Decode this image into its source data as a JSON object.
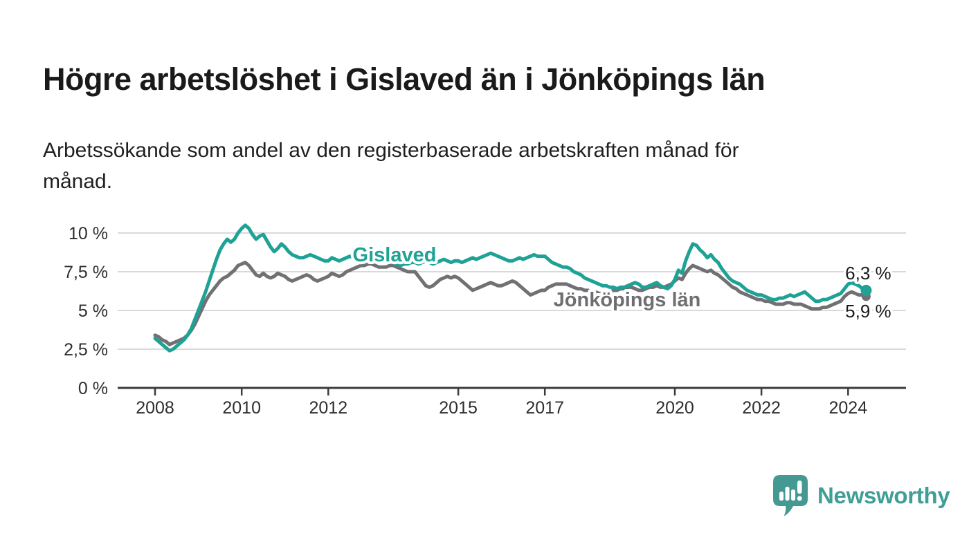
{
  "header": {
    "title": "Högre arbetslöshet i Gislaved än i Jönköpings län",
    "subtitle_line1": "Arbetssökande som andel av den registerbaserade arbetskraften månad för",
    "subtitle_line2": "månad."
  },
  "chart_data": {
    "type": "line",
    "x_start_year": 2008,
    "x_step_months": 1,
    "x_end_label_period": "2024 (mitten av året)",
    "ylim": [
      0,
      10.5
    ],
    "xlim": [
      2007.1,
      2025.3
    ],
    "grid": "horizontal",
    "grid_color": "#d9d9d9",
    "axis_color": "#3b3b3b",
    "axis_label_color": "#2e2e2e",
    "value_label_color": "#1a1a1a",
    "y_ticks": [
      {
        "value": 0,
        "label": "0 %"
      },
      {
        "value": 2.5,
        "label": "2,5 %"
      },
      {
        "value": 5,
        "label": "5 %"
      },
      {
        "value": 7.5,
        "label": "7,5 %"
      },
      {
        "value": 10,
        "label": "10 %"
      }
    ],
    "x_ticks": [
      {
        "year": 2008,
        "label": "2008"
      },
      {
        "year": 2010,
        "label": "2010"
      },
      {
        "year": 2012,
        "label": "2012"
      },
      {
        "year": 2015,
        "label": "2015"
      },
      {
        "year": 2017,
        "label": "2017"
      },
      {
        "year": 2020,
        "label": "2020"
      },
      {
        "year": 2022,
        "label": "2022"
      },
      {
        "year": 2024,
        "label": "2024"
      }
    ],
    "series": [
      {
        "name": "Gislaved",
        "color": "#1ea296",
        "label_color": "#1ea296",
        "end_label": "6,3 %",
        "end_value": 6.3,
        "values": [
          3.2,
          3.0,
          2.8,
          2.6,
          2.4,
          2.5,
          2.7,
          2.9,
          3.1,
          3.4,
          3.8,
          4.4,
          5.0,
          5.6,
          6.2,
          6.9,
          7.6,
          8.3,
          8.9,
          9.3,
          9.6,
          9.4,
          9.6,
          10.0,
          10.3,
          10.5,
          10.3,
          9.9,
          9.6,
          9.8,
          9.9,
          9.5,
          9.1,
          8.8,
          9.0,
          9.3,
          9.1,
          8.8,
          8.6,
          8.5,
          8.4,
          8.4,
          8.5,
          8.6,
          8.5,
          8.4,
          8.3,
          8.2,
          8.2,
          8.4,
          8.3,
          8.2,
          8.3,
          8.4,
          8.5,
          8.4,
          8.5,
          8.6,
          8.7,
          8.9,
          8.7,
          8.6,
          8.5,
          8.4,
          8.3,
          8.2,
          8.1,
          8.0,
          7.9,
          8.0,
          8.0,
          8.1,
          8.1,
          8.0,
          8.1,
          8.2,
          8.1,
          8.0,
          8.1,
          8.2,
          8.3,
          8.2,
          8.1,
          8.2,
          8.2,
          8.1,
          8.2,
          8.3,
          8.4,
          8.3,
          8.4,
          8.5,
          8.6,
          8.7,
          8.6,
          8.5,
          8.4,
          8.3,
          8.2,
          8.2,
          8.3,
          8.4,
          8.3,
          8.4,
          8.5,
          8.6,
          8.5,
          8.5,
          8.5,
          8.3,
          8.1,
          8.0,
          7.9,
          7.8,
          7.8,
          7.7,
          7.5,
          7.4,
          7.3,
          7.1,
          7.0,
          6.9,
          6.8,
          6.7,
          6.6,
          6.6,
          6.5,
          6.5,
          6.4,
          6.5,
          6.5,
          6.6,
          6.7,
          6.8,
          6.7,
          6.5,
          6.5,
          6.6,
          6.7,
          6.8,
          6.6,
          6.5,
          6.4,
          6.6,
          7.0,
          7.6,
          7.4,
          8.2,
          8.8,
          9.3,
          9.2,
          8.9,
          8.7,
          8.4,
          8.6,
          8.3,
          8.1,
          7.7,
          7.4,
          7.1,
          6.9,
          6.8,
          6.7,
          6.5,
          6.3,
          6.2,
          6.1,
          6.0,
          6.0,
          5.9,
          5.8,
          5.7,
          5.7,
          5.8,
          5.8,
          5.9,
          6.0,
          5.9,
          6.0,
          6.1,
          6.2,
          6.0,
          5.8,
          5.6,
          5.6,
          5.7,
          5.7,
          5.8,
          5.9,
          6.0,
          6.1,
          6.4,
          6.7,
          6.8,
          6.7,
          6.6,
          6.4,
          6.3
        ]
      },
      {
        "name": "Jönköpings län",
        "color": "#717174",
        "label_color": "#6f6f72",
        "end_label": "5,9 %",
        "end_value": 5.9,
        "values": [
          3.4,
          3.3,
          3.1,
          3.0,
          2.8,
          2.9,
          3.0,
          3.1,
          3.2,
          3.4,
          3.7,
          4.1,
          4.6,
          5.1,
          5.6,
          6.0,
          6.3,
          6.6,
          6.9,
          7.1,
          7.2,
          7.4,
          7.6,
          7.9,
          8.0,
          8.1,
          7.9,
          7.6,
          7.3,
          7.2,
          7.4,
          7.2,
          7.1,
          7.2,
          7.4,
          7.3,
          7.2,
          7.0,
          6.9,
          7.0,
          7.1,
          7.2,
          7.3,
          7.2,
          7.0,
          6.9,
          7.0,
          7.1,
          7.2,
          7.4,
          7.3,
          7.2,
          7.3,
          7.5,
          7.6,
          7.7,
          7.8,
          7.9,
          7.9,
          8.0,
          8.0,
          7.9,
          7.8,
          7.8,
          7.8,
          7.9,
          7.9,
          7.8,
          7.7,
          7.6,
          7.5,
          7.5,
          7.5,
          7.2,
          6.9,
          6.6,
          6.5,
          6.6,
          6.8,
          7.0,
          7.1,
          7.2,
          7.1,
          7.2,
          7.1,
          6.9,
          6.7,
          6.5,
          6.3,
          6.4,
          6.5,
          6.6,
          6.7,
          6.8,
          6.7,
          6.6,
          6.6,
          6.7,
          6.8,
          6.9,
          6.8,
          6.6,
          6.4,
          6.2,
          6.0,
          6.1,
          6.2,
          6.3,
          6.3,
          6.5,
          6.6,
          6.7,
          6.7,
          6.7,
          6.7,
          6.6,
          6.5,
          6.4,
          6.4,
          6.3,
          6.3,
          6.2,
          6.2,
          6.1,
          6.1,
          6.2,
          6.2,
          6.3,
          6.3,
          6.4,
          6.4,
          6.5,
          6.5,
          6.4,
          6.3,
          6.3,
          6.4,
          6.5,
          6.5,
          6.6,
          6.5,
          6.5,
          6.6,
          6.7,
          6.9,
          7.1,
          7.0,
          7.4,
          7.7,
          7.9,
          7.8,
          7.7,
          7.6,
          7.5,
          7.6,
          7.4,
          7.3,
          7.1,
          6.9,
          6.7,
          6.5,
          6.4,
          6.2,
          6.1,
          6.0,
          5.9,
          5.8,
          5.7,
          5.7,
          5.6,
          5.6,
          5.5,
          5.4,
          5.4,
          5.4,
          5.5,
          5.5,
          5.4,
          5.4,
          5.4,
          5.3,
          5.2,
          5.1,
          5.1,
          5.1,
          5.2,
          5.2,
          5.3,
          5.4,
          5.5,
          5.6,
          5.9,
          6.1,
          6.2,
          6.1,
          6.0,
          6.0,
          5.9
        ]
      }
    ]
  },
  "footer": {
    "brand_name": "Newsworthy",
    "brand_color": "#3f9e96",
    "logo_icon_color": "#449a93"
  }
}
